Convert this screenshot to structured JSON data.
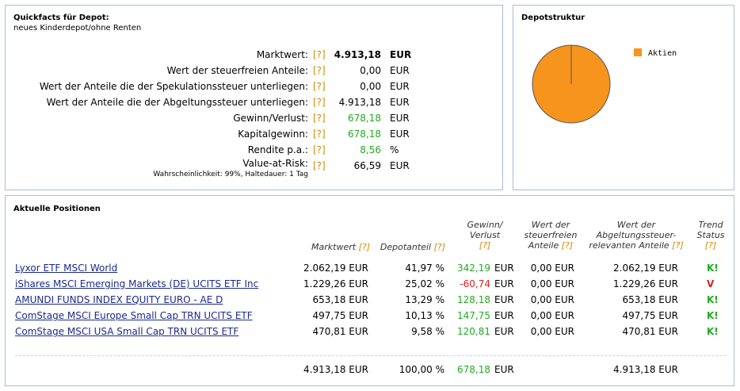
{
  "quickfacts": {
    "title": "Quickfacts für Depot:",
    "subtitle": "neues Kinderdepot/ohne Renten",
    "help": "[?]",
    "rows": [
      {
        "label": "Marktwert:",
        "value": "4.913,18",
        "unit": "EUR"
      },
      {
        "label": "Wert der steuerfreien Anteile:",
        "value": "0,00",
        "unit": "EUR"
      },
      {
        "label": "Wert der Anteile die der Spekulationssteuer unterliegen:",
        "value": "0,00",
        "unit": "EUR"
      },
      {
        "label": "Wert der Anteile die der Abgeltungssteuer unterliegen:",
        "value": "4.913,18",
        "unit": "EUR"
      },
      {
        "label": "Gewinn/Verlust:",
        "value": "678,18",
        "unit": "EUR"
      },
      {
        "label": "Kapitalgewinn:",
        "value": "678,18",
        "unit": "EUR"
      },
      {
        "label": "Rendite p.a.:",
        "value": "8,56",
        "unit": "%"
      },
      {
        "label": "Value-at-Risk:",
        "note": "Wahrscheinlichkeit: 99%, Haltedauer: 1 Tag",
        "value": "66,59",
        "unit": "EUR"
      }
    ]
  },
  "depotstruktur": {
    "title": "Depotstruktur",
    "legend": [
      {
        "label": "Aktien",
        "color": "#f7941d"
      }
    ],
    "pie_share": 100
  },
  "positionen": {
    "title": "Aktuelle Positionen",
    "help": "[?]",
    "headers": {
      "marktwert": "Marktwert",
      "depotanteil": "Depotanteil",
      "gv1": "Gewinn/",
      "gv2": "Verlust",
      "sf1": "Wert der",
      "sf2": "steuerfreien",
      "sf3": "Anteile",
      "ab1": "Wert der",
      "ab2": "Abgeltungssteuer-",
      "ab3": "relevanten Anteile",
      "tr1": "Trend",
      "tr2": "Status"
    },
    "rows": [
      {
        "name": "Lyxor ETF MSCI World",
        "marktwert": "2.062,19 EUR",
        "anteil": "41,97 %",
        "gv": "342,19",
        "gv_unit": "EUR",
        "steuerfrei": "0,00 EUR",
        "abgelt": "2.062,19 EUR",
        "trend": "K!"
      },
      {
        "name": "iShares MSCI Emerging Markets (DE) UCITS ETF Inc",
        "marktwert": "1.229,26 EUR",
        "anteil": "25,02 %",
        "gv": "-60,74",
        "gv_unit": "EUR",
        "steuerfrei": "0,00 EUR",
        "abgelt": "1.229,26 EUR",
        "trend": "V"
      },
      {
        "name": "AMUNDI FUNDS INDEX EQUITY EURO - AE D",
        "marktwert": "653,18 EUR",
        "anteil": "13,29 %",
        "gv": "128,18",
        "gv_unit": "EUR",
        "steuerfrei": "0,00 EUR",
        "abgelt": "653,18 EUR",
        "trend": "K!"
      },
      {
        "name": "ComStage MSCI Europe Small Cap TRN UCITS ETF",
        "marktwert": "497,75 EUR",
        "anteil": "10,13 %",
        "gv": "147,75",
        "gv_unit": "EUR",
        "steuerfrei": "0,00 EUR",
        "abgelt": "497,75 EUR",
        "trend": "K!"
      },
      {
        "name": "ComStage MSCI USA Small Cap TRN UCITS ETF",
        "marktwert": "470,81 EUR",
        "anteil": "9,58 %",
        "gv": "120,81",
        "gv_unit": "EUR",
        "steuerfrei": "0,00 EUR",
        "abgelt": "470,81 EUR",
        "trend": "K!"
      }
    ],
    "total": {
      "marktwert": "4.913,18 EUR",
      "anteil": "100,00 %",
      "gv": "678,18",
      "gv_unit": "EUR",
      "abgelt": "4.913,18 EUR"
    }
  }
}
